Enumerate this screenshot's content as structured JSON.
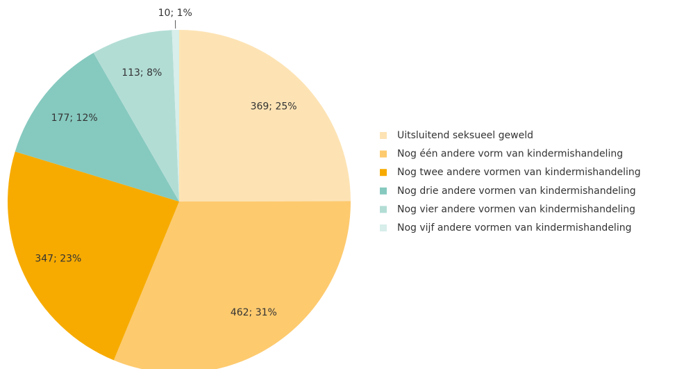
{
  "chart_data": {
    "type": "pie",
    "categories": [
      "Uitsluitend seksueel geweld",
      "Nog één andere vorm van kindermishandeling",
      "Nog twee andere vormen van kindermishandeling",
      "Nog drie andere vormen van kindermishandeling",
      "Nog vier andere vormen van kindermishandeling",
      "Nog vijf andere vormen van kindermishandeling"
    ],
    "values": [
      369,
      462,
      347,
      177,
      113,
      10
    ],
    "value_labels": [
      "369; 25%",
      "462; 31%",
      "347; 23%",
      "177; 12%",
      "113; 8%",
      "10; 1%"
    ],
    "colors": [
      "#fde3b4",
      "#fdca6e",
      "#f7ab00",
      "#86c9bf",
      "#b2ddd5",
      "#d7eeea"
    ],
    "legend": "right"
  }
}
